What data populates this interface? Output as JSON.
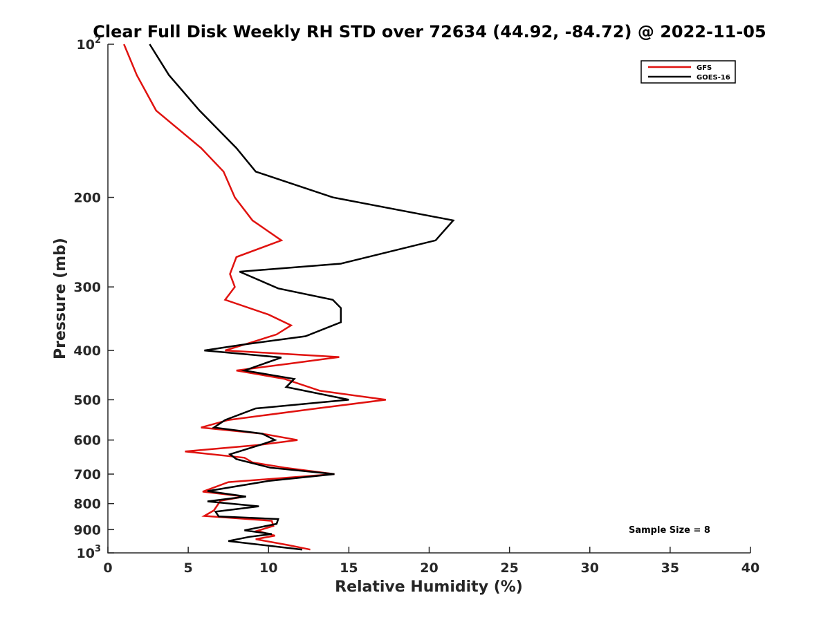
{
  "chart_data": {
    "type": "line",
    "title": "Clear Full Disk Weekly RH STD over 72634 (44.92, -84.72) @ 2022-11-05",
    "xlabel": "Relative Humidity (%)",
    "ylabel": "Pressure (mb)",
    "xlim": [
      0,
      40
    ],
    "ylim": [
      100,
      1000
    ],
    "yscale": "log",
    "y_reversed": true,
    "xticks": [
      0,
      5,
      10,
      15,
      20,
      25,
      30,
      35,
      40
    ],
    "yticks": [
      {
        "value": 100,
        "base": "10",
        "exp": "2"
      },
      {
        "value": 200,
        "label": "200"
      },
      {
        "value": 300,
        "label": "300"
      },
      {
        "value": 400,
        "label": "400"
      },
      {
        "value": 500,
        "label": "500"
      },
      {
        "value": 600,
        "label": "600"
      },
      {
        "value": 700,
        "label": "700"
      },
      {
        "value": 800,
        "label": "800"
      },
      {
        "value": 900,
        "label": "900"
      },
      {
        "value": 1000,
        "base": "10",
        "exp": "3"
      }
    ],
    "legend": {
      "position": "top-right"
    },
    "annotation": "Sample Size = 8",
    "series": [
      {
        "name": "GFS",
        "color": "#e0120f",
        "points": [
          [
            1.0,
            100
          ],
          [
            1.8,
            115
          ],
          [
            3.0,
            135
          ],
          [
            5.8,
            160
          ],
          [
            7.2,
            178
          ],
          [
            7.9,
            200
          ],
          [
            9.0,
            222
          ],
          [
            10.8,
            243
          ],
          [
            8.0,
            262
          ],
          [
            7.6,
            283
          ],
          [
            7.9,
            300
          ],
          [
            7.3,
            318
          ],
          [
            10.0,
            340
          ],
          [
            11.4,
            357
          ],
          [
            10.5,
            372
          ],
          [
            9.0,
            385
          ],
          [
            7.3,
            400
          ],
          [
            14.4,
            412
          ],
          [
            11.2,
            425
          ],
          [
            8.0,
            438
          ],
          [
            11.0,
            455
          ],
          [
            13.2,
            480
          ],
          [
            17.3,
            500
          ],
          [
            13.0,
            520
          ],
          [
            7.5,
            548
          ],
          [
            5.8,
            567
          ],
          [
            9.6,
            583
          ],
          [
            11.8,
            600
          ],
          [
            9.5,
            613
          ],
          [
            4.8,
            632
          ],
          [
            8.5,
            650
          ],
          [
            9.0,
            664
          ],
          [
            11.0,
            680
          ],
          [
            14.1,
            700
          ],
          [
            7.5,
            726
          ],
          [
            5.9,
            758
          ],
          [
            8.5,
            775
          ],
          [
            7.0,
            790
          ],
          [
            6.6,
            825
          ],
          [
            6.0,
            846
          ],
          [
            10.2,
            865
          ],
          [
            10.3,
            885
          ],
          [
            9.3,
            905
          ],
          [
            10.4,
            925
          ],
          [
            9.2,
            940
          ],
          [
            11.2,
            965
          ],
          [
            12.6,
            985
          ]
        ]
      },
      {
        "name": "GOES-16",
        "color": "#000000",
        "points": [
          [
            2.6,
            100
          ],
          [
            3.8,
            115
          ],
          [
            5.7,
            135
          ],
          [
            8.0,
            160
          ],
          [
            9.2,
            178
          ],
          [
            14.0,
            200
          ],
          [
            21.5,
            222
          ],
          [
            20.4,
            243
          ],
          [
            14.5,
            270
          ],
          [
            8.2,
            280
          ],
          [
            10.6,
            302
          ],
          [
            14.0,
            318
          ],
          [
            14.5,
            330
          ],
          [
            14.5,
            352
          ],
          [
            12.3,
            375
          ],
          [
            8.3,
            390
          ],
          [
            6.0,
            400
          ],
          [
            10.8,
            413
          ],
          [
            8.5,
            438
          ],
          [
            11.6,
            455
          ],
          [
            11.1,
            472
          ],
          [
            15.0,
            500
          ],
          [
            9.2,
            520
          ],
          [
            7.3,
            548
          ],
          [
            6.6,
            567
          ],
          [
            9.6,
            583
          ],
          [
            10.4,
            600
          ],
          [
            9.3,
            616
          ],
          [
            7.6,
            640
          ],
          [
            8.0,
            654
          ],
          [
            10.1,
            680
          ],
          [
            14.1,
            700
          ],
          [
            10.0,
            722
          ],
          [
            6.2,
            756
          ],
          [
            8.6,
            775
          ],
          [
            6.2,
            792
          ],
          [
            9.4,
            810
          ],
          [
            6.7,
            830
          ],
          [
            6.9,
            848
          ],
          [
            10.6,
            858
          ],
          [
            10.5,
            877
          ],
          [
            8.5,
            903
          ],
          [
            10.2,
            918
          ],
          [
            8.8,
            930
          ],
          [
            7.5,
            948
          ],
          [
            12.1,
            985
          ]
        ]
      }
    ]
  }
}
